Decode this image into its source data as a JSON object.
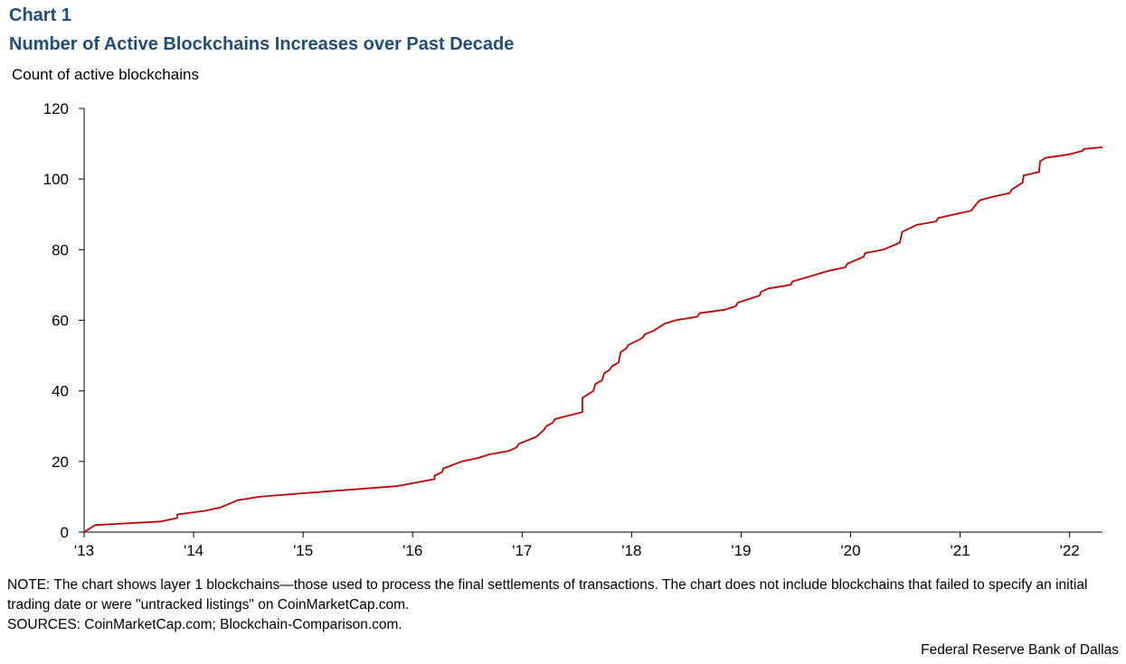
{
  "header": {
    "chart_label": "Chart 1",
    "title": "Number of Active Blockchains Increases over Past Decade",
    "y_unit_label": "Count of active blockchains"
  },
  "footer": {
    "note": "NOTE: The chart shows layer 1 blockchains—those used to process the final settlements of transactions. The chart does not include blockchains that failed to specify an initial trading date or were \"untracked listings\" on CoinMarketCap.com.",
    "sources": "SOURCES: CoinMarketCap.com; Blockchain-Comparison.com.",
    "credit": "Federal Reserve Bank of Dallas"
  },
  "chart_data": {
    "type": "line",
    "title": "Number of Active Blockchains Increases over Past Decade",
    "ylabel": "Count of active blockchains",
    "xlabel": "",
    "ylim": [
      0,
      120
    ],
    "xlim": [
      2013.0,
      2022.3
    ],
    "yticks": [
      0,
      20,
      40,
      60,
      80,
      100,
      120
    ],
    "xticks": [
      {
        "value": 2013,
        "label": "'13"
      },
      {
        "value": 2014,
        "label": "'14"
      },
      {
        "value": 2015,
        "label": "'15"
      },
      {
        "value": 2016,
        "label": "'16"
      },
      {
        "value": 2017,
        "label": "'17"
      },
      {
        "value": 2018,
        "label": "'18"
      },
      {
        "value": 2019,
        "label": "'19"
      },
      {
        "value": 2020,
        "label": "'20"
      },
      {
        "value": 2021,
        "label": "'21"
      },
      {
        "value": 2022,
        "label": "'22"
      }
    ],
    "grid": false,
    "color": "#c00000",
    "series": [
      {
        "x": [
          2013.0,
          2013.1,
          2013.7,
          2013.85,
          2013.85,
          2014.1,
          2014.25,
          2014.4,
          2014.6,
          2015.0,
          2015.85,
          2016.2,
          2016.2,
          2016.27,
          2016.28,
          2016.45,
          2016.6,
          2016.7,
          2016.88,
          2016.95,
          2016.97,
          2017.13,
          2017.2,
          2017.22,
          2017.28,
          2017.3,
          2017.55,
          2017.55,
          2017.65,
          2017.67,
          2017.73,
          2017.75,
          2017.8,
          2017.82,
          2017.88,
          2017.9,
          2017.95,
          2017.97,
          2018.1,
          2018.12,
          2018.2,
          2018.3,
          2018.4,
          2018.6,
          2018.62,
          2018.85,
          2018.95,
          2018.97,
          2019.17,
          2019.18,
          2019.25,
          2019.45,
          2019.47,
          2019.8,
          2019.95,
          2019.97,
          2020.12,
          2020.13,
          2020.3,
          2020.45,
          2020.47,
          2020.6,
          2020.78,
          2020.8,
          2021.1,
          2021.15,
          2021.18,
          2021.3,
          2021.45,
          2021.47,
          2021.57,
          2021.58,
          2021.72,
          2021.73,
          2021.78,
          2022.0,
          2022.12,
          2022.13,
          2022.3
        ],
        "y": [
          0,
          2,
          3,
          4,
          5,
          6,
          7,
          9,
          10,
          11,
          13,
          15,
          16,
          17,
          18,
          20,
          21,
          22,
          23,
          24,
          25,
          27,
          29,
          30,
          31,
          32,
          34,
          38,
          40,
          42,
          43,
          45,
          46,
          47,
          48,
          51,
          52,
          53,
          55,
          56,
          57,
          59,
          60,
          61,
          62,
          63,
          64,
          65,
          67,
          68,
          69,
          70,
          71,
          74,
          75,
          76,
          78,
          79,
          80,
          82,
          85,
          87,
          88,
          89,
          91,
          93,
          94,
          95,
          96,
          97,
          99,
          101,
          102,
          105,
          106,
          107,
          108,
          108.5,
          109
        ]
      }
    ]
  }
}
